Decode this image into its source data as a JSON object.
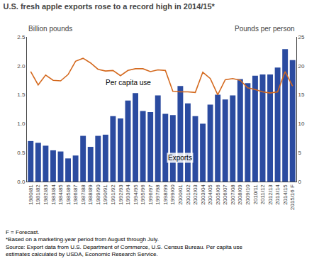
{
  "chart_data": {
    "type": "bar",
    "title": "U.S. fresh apple exports rose to a record high in 2014/15*",
    "ylabel": "Billion pounds",
    "y2label": "Pounds per person",
    "annotations": [
      "Exports",
      "Per capita use"
    ],
    "footer": [
      "F = Forecast.",
      "*Based on a marketing-year period from August through July.",
      "Source: Export data from U.S. Department of Commerce, U.S. Census Bureau. Per capita use",
      "estimates calculated by USDA, Economic Research Service."
    ],
    "categories": [
      "1980/81",
      "1981/82",
      "1982/83",
      "1983/84",
      "1984/85",
      "1985/86",
      "1986/87",
      "1987/88",
      "1988/89",
      "1989/90",
      "1990/91",
      "1991/92",
      "1992/93",
      "1993/94",
      "1994/95",
      "1995/96",
      "1996/97",
      "1997/98",
      "1998/99",
      "1999/00",
      "2000/01",
      "2001/02",
      "2002/03",
      "2003/04",
      "2004/05",
      "2005/06",
      "2006/07",
      "2007/08",
      "2008/09",
      "2009/10",
      "2010/11",
      "2011/12",
      "2012/13",
      "2013/14",
      "2014/15",
      "2015/16 F"
    ],
    "series": [
      {
        "name": "Exports",
        "type": "bar",
        "color": "#2B4BA0",
        "values": [
          0.7,
          0.67,
          0.62,
          0.54,
          0.52,
          0.4,
          0.45,
          0.79,
          0.6,
          0.79,
          0.81,
          1.13,
          1.09,
          1.4,
          1.53,
          1.22,
          1.2,
          1.49,
          1.17,
          1.15,
          1.65,
          1.35,
          1.13,
          1.0,
          1.33,
          1.5,
          1.42,
          1.49,
          1.77,
          1.7,
          1.83,
          1.85,
          1.85,
          1.97,
          2.29,
          2.1
        ]
      },
      {
        "name": "Per capita use",
        "type": "line",
        "axis": "y2",
        "color": "#D4691E",
        "values": [
          19.0,
          16.7,
          18.4,
          17.5,
          17.4,
          18.5,
          20.8,
          21.3,
          20.5,
          19.4,
          19.1,
          19.2,
          18.3,
          19.2,
          19.5,
          19.5,
          19.0,
          19.3,
          19.2,
          15.6,
          15.5,
          15.5,
          15.4,
          18.9,
          17.8,
          15.0,
          17.6,
          17.8,
          17.5,
          16.2,
          15.9,
          15.5,
          15.3,
          15.5,
          19.0,
          16.5
        ]
      }
    ],
    "ylim": [
      0,
      2.5
    ],
    "yticks": [
      {
        "value": 0,
        "label": "0.0"
      },
      0.5,
      {
        "value": 1,
        "label": "1.0"
      },
      1.5,
      {
        "value": 2,
        "label": "2.0"
      },
      2.5
    ],
    "y2lim": [
      0,
      25
    ],
    "y2ticks": [
      0,
      5,
      10,
      15,
      20,
      25
    ],
    "grid": false
  }
}
